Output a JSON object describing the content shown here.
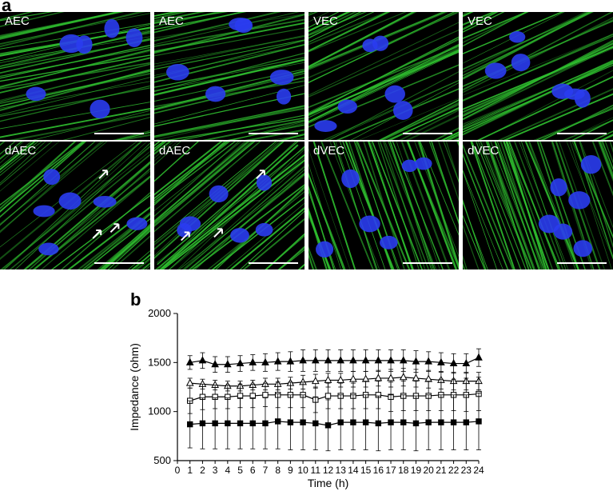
{
  "panel_a": {
    "letter": "a",
    "tiles": [
      {
        "label": "AEC",
        "arrows": 0
      },
      {
        "label": "AEC",
        "arrows": 0
      },
      {
        "label": "VEC",
        "arrows": 0
      },
      {
        "label": "VEC",
        "arrows": 0
      },
      {
        "label": "dAEC",
        "arrows": 3
      },
      {
        "label": "dAEC",
        "arrows": 3
      },
      {
        "label": "dVEC",
        "arrows": 0
      },
      {
        "label": "dVEC",
        "arrows": 0
      }
    ],
    "colors": {
      "actin": "#2fbf2f",
      "nuclei": "#2a3cf0",
      "background": "#000000"
    }
  },
  "panel_b": {
    "letter": "b"
  },
  "chart_data": {
    "type": "line",
    "xlabel": "Time (h)",
    "ylabel": "Impedance (ohm)",
    "xlim": [
      0,
      24
    ],
    "ylim": [
      500,
      2000
    ],
    "x_ticks": [
      0,
      1,
      2,
      3,
      4,
      5,
      6,
      7,
      8,
      9,
      10,
      11,
      12,
      13,
      14,
      15,
      16,
      17,
      18,
      19,
      20,
      21,
      22,
      23,
      24
    ],
    "y_ticks": [
      500,
      1000,
      1500,
      2000
    ],
    "x": [
      1,
      2,
      3,
      4,
      5,
      6,
      7,
      8,
      9,
      10,
      11,
      12,
      13,
      14,
      15,
      16,
      17,
      18,
      19,
      20,
      21,
      22,
      23,
      24
    ],
    "grid": false,
    "legend": "none",
    "series": [
      {
        "marker": "filled-triangle",
        "values": [
          1500,
          1520,
          1480,
          1480,
          1490,
          1500,
          1500,
          1510,
          1510,
          1520,
          1520,
          1520,
          1520,
          1520,
          1520,
          1520,
          1520,
          1520,
          1510,
          1510,
          1500,
          1490,
          1490,
          1550
        ],
        "errors": [
          70,
          80,
          80,
          80,
          80,
          80,
          90,
          90,
          100,
          110,
          110,
          110,
          110,
          110,
          110,
          110,
          110,
          110,
          110,
          100,
          100,
          100,
          100,
          90
        ]
      },
      {
        "marker": "open-triangle",
        "values": [
          1290,
          1280,
          1270,
          1260,
          1260,
          1270,
          1280,
          1280,
          1290,
          1300,
          1310,
          1320,
          1320,
          1330,
          1330,
          1340,
          1340,
          1350,
          1340,
          1330,
          1320,
          1310,
          1310,
          1310
        ],
        "errors": [
          50,
          50,
          50,
          50,
          50,
          50,
          60,
          60,
          60,
          70,
          70,
          70,
          70,
          80,
          80,
          80,
          90,
          90,
          90,
          90,
          90,
          90,
          90,
          90
        ]
      },
      {
        "marker": "open-square",
        "values": [
          1110,
          1150,
          1150,
          1150,
          1160,
          1160,
          1170,
          1170,
          1170,
          1170,
          1120,
          1160,
          1160,
          1160,
          1170,
          1170,
          1150,
          1160,
          1160,
          1160,
          1170,
          1170,
          1170,
          1180
        ],
        "errors": [
          130,
          130,
          120,
          120,
          120,
          120,
          120,
          130,
          130,
          130,
          130,
          130,
          130,
          130,
          140,
          140,
          150,
          150,
          150,
          150,
          160,
          160,
          170,
          170
        ]
      },
      {
        "marker": "filled-square",
        "values": [
          870,
          880,
          880,
          880,
          880,
          880,
          880,
          900,
          890,
          890,
          880,
          860,
          890,
          890,
          890,
          880,
          890,
          890,
          880,
          890,
          890,
          890,
          890,
          900
        ],
        "errors": [
          240,
          260,
          260,
          260,
          260,
          260,
          260,
          280,
          280,
          280,
          270,
          260,
          280,
          280,
          280,
          280,
          280,
          280,
          280,
          280,
          280,
          280,
          280,
          290
        ]
      }
    ]
  }
}
